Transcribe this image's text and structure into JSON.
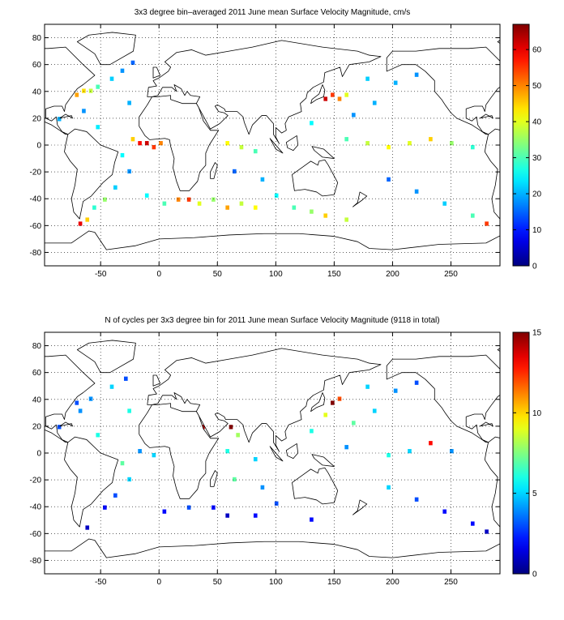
{
  "chart_data": [
    {
      "type": "heatmap",
      "title": "3x3 degree bin–averaged 2011 June mean Surface Velocity Magnitude, cm/s",
      "xlim": [
        -98,
        292
      ],
      "ylim": [
        -90,
        90
      ],
      "xticks": [
        -50,
        0,
        50,
        100,
        150,
        200,
        250
      ],
      "yticks": [
        -80,
        -60,
        -40,
        -20,
        0,
        20,
        40,
        60,
        80
      ],
      "grid": true,
      "colormap": "jet",
      "clim": [
        0,
        67
      ],
      "colorbar_ticks": [
        0,
        10,
        20,
        30,
        40,
        50,
        60
      ],
      "cells": [
        {
          "lon": -76.5,
          "lat": 37.5,
          "value": 52
        },
        {
          "lon": -70.5,
          "lat": 37.5,
          "value": 48
        },
        {
          "lon": -64.5,
          "lat": 40.5,
          "value": 44
        },
        {
          "lon": -58.5,
          "lat": 40.5,
          "value": 38
        },
        {
          "lon": -52.5,
          "lat": 43.5,
          "value": 30
        },
        {
          "lon": -40.5,
          "lat": 49.5,
          "value": 22
        },
        {
          "lon": -31.5,
          "lat": 55.5,
          "value": 18
        },
        {
          "lon": -22.5,
          "lat": 61.5,
          "value": 15
        },
        {
          "lon": -25.5,
          "lat": 31.5,
          "value": 20
        },
        {
          "lon": -16.5,
          "lat": 1.5,
          "value": 58
        },
        {
          "lon": -10.5,
          "lat": 1.5,
          "value": 62
        },
        {
          "lon": -4.5,
          "lat": -1.5,
          "value": 55
        },
        {
          "lon": 1.5,
          "lat": 1.5,
          "value": 50
        },
        {
          "lon": -22.5,
          "lat": 4.5,
          "value": 45
        },
        {
          "lon": -31.5,
          "lat": -7.5,
          "value": 25
        },
        {
          "lon": -25.5,
          "lat": -19.5,
          "value": 18
        },
        {
          "lon": -37.5,
          "lat": -31.5,
          "value": 22
        },
        {
          "lon": -46.5,
          "lat": -40.5,
          "value": 35
        },
        {
          "lon": -55.5,
          "lat": -46.5,
          "value": 28
        },
        {
          "lon": -61.5,
          "lat": -55.5,
          "value": 45
        },
        {
          "lon": -67.5,
          "lat": -58.5,
          "value": 60
        },
        {
          "lon": -10.5,
          "lat": -37.5,
          "value": 25
        },
        {
          "lon": 4.5,
          "lat": -43.5,
          "value": 30
        },
        {
          "lon": 16.5,
          "lat": -40.5,
          "value": 50
        },
        {
          "lon": 25.5,
          "lat": -40.5,
          "value": 55
        },
        {
          "lon": 34.5,
          "lat": -43.5,
          "value": 40
        },
        {
          "lon": 46.5,
          "lat": -40.5,
          "value": 35
        },
        {
          "lon": 58.5,
          "lat": -46.5,
          "value": 48
        },
        {
          "lon": 70.5,
          "lat": -43.5,
          "value": 38
        },
        {
          "lon": 82.5,
          "lat": -46.5,
          "value": 42
        },
        {
          "lon": 58.5,
          "lat": 1.5,
          "value": 42
        },
        {
          "lon": 70.5,
          "lat": -1.5,
          "value": 38
        },
        {
          "lon": 82.5,
          "lat": -4.5,
          "value": 30
        },
        {
          "lon": 64.5,
          "lat": -19.5,
          "value": 15
        },
        {
          "lon": 88.5,
          "lat": -25.5,
          "value": 20
        },
        {
          "lon": 100.5,
          "lat": -37.5,
          "value": 25
        },
        {
          "lon": 115.5,
          "lat": -46.5,
          "value": 30
        },
        {
          "lon": 130.5,
          "lat": -49.5,
          "value": 35
        },
        {
          "lon": 142.5,
          "lat": -52.5,
          "value": 45
        },
        {
          "lon": 160.5,
          "lat": -55.5,
          "value": 38
        },
        {
          "lon": 142.5,
          "lat": 34.5,
          "value": 62
        },
        {
          "lon": 148.5,
          "lat": 37.5,
          "value": 55
        },
        {
          "lon": 154.5,
          "lat": 34.5,
          "value": 50
        },
        {
          "lon": 160.5,
          "lat": 37.5,
          "value": 40
        },
        {
          "lon": 130.5,
          "lat": 16.5,
          "value": 25
        },
        {
          "lon": 166.5,
          "lat": 22.5,
          "value": 18
        },
        {
          "lon": 184.5,
          "lat": 31.5,
          "value": 20
        },
        {
          "lon": 160.5,
          "lat": 4.5,
          "value": 30
        },
        {
          "lon": 178.5,
          "lat": 1.5,
          "value": 38
        },
        {
          "lon": 196.5,
          "lat": -1.5,
          "value": 42
        },
        {
          "lon": 214.5,
          "lat": 1.5,
          "value": 40
        },
        {
          "lon": 232.5,
          "lat": 4.5,
          "value": 45
        },
        {
          "lon": 250.5,
          "lat": 1.5,
          "value": 35
        },
        {
          "lon": 268.5,
          "lat": -1.5,
          "value": 28
        },
        {
          "lon": 196.5,
          "lat": -25.5,
          "value": 15
        },
        {
          "lon": 220.5,
          "lat": -34.5,
          "value": 18
        },
        {
          "lon": 244.5,
          "lat": -43.5,
          "value": 22
        },
        {
          "lon": 268.5,
          "lat": -52.5,
          "value": 30
        },
        {
          "lon": 280.5,
          "lat": -58.5,
          "value": 55
        },
        {
          "lon": 202.5,
          "lat": 46.5,
          "value": 20
        },
        {
          "lon": 220.5,
          "lat": 52.5,
          "value": 18
        },
        {
          "lon": 178.5,
          "lat": 49.5,
          "value": 22
        },
        {
          "lon": -64.5,
          "lat": 25.5,
          "value": 18
        },
        {
          "lon": -52.5,
          "lat": 13.5,
          "value": 24
        },
        {
          "lon": -85.5,
          "lat": 19.5,
          "value": 20
        }
      ]
    },
    {
      "type": "heatmap",
      "title": "N of cycles per 3x3 degree bin for 2011 June mean Surface Velocity Magnitude (9118 in total)",
      "xlim": [
        -98,
        292
      ],
      "ylim": [
        -90,
        90
      ],
      "xticks": [
        -50,
        0,
        50,
        100,
        150,
        200,
        250
      ],
      "yticks": [
        -80,
        -60,
        -40,
        -20,
        0,
        20,
        40,
        60,
        80
      ],
      "grid": true,
      "colormap": "jet",
      "clim": [
        0,
        15
      ],
      "colorbar_ticks": [
        0,
        5,
        10,
        15
      ],
      "cells": [
        {
          "lon": -70.5,
          "lat": 37.5,
          "value": 3
        },
        {
          "lon": -58.5,
          "lat": 40.5,
          "value": 4
        },
        {
          "lon": -40.5,
          "lat": 49.5,
          "value": 5
        },
        {
          "lon": -28.5,
          "lat": 55.5,
          "value": 3
        },
        {
          "lon": -25.5,
          "lat": 31.5,
          "value": 6
        },
        {
          "lon": -16.5,
          "lat": 1.5,
          "value": 4
        },
        {
          "lon": -4.5,
          "lat": -1.5,
          "value": 5
        },
        {
          "lon": -31.5,
          "lat": -7.5,
          "value": 7
        },
        {
          "lon": -25.5,
          "lat": -19.5,
          "value": 5
        },
        {
          "lon": -37.5,
          "lat": -31.5,
          "value": 3
        },
        {
          "lon": -46.5,
          "lat": -40.5,
          "value": 2
        },
        {
          "lon": -61.5,
          "lat": -55.5,
          "value": 1
        },
        {
          "lon": 4.5,
          "lat": -43.5,
          "value": 2
        },
        {
          "lon": 25.5,
          "lat": -40.5,
          "value": 3
        },
        {
          "lon": 46.5,
          "lat": -40.5,
          "value": 2
        },
        {
          "lon": 58.5,
          "lat": -46.5,
          "value": 1
        },
        {
          "lon": 82.5,
          "lat": -46.5,
          "value": 2
        },
        {
          "lon": 61.5,
          "lat": 19.5,
          "value": 15
        },
        {
          "lon": 67.5,
          "lat": 13.5,
          "value": 8
        },
        {
          "lon": 58.5,
          "lat": 1.5,
          "value": 6
        },
        {
          "lon": 82.5,
          "lat": -4.5,
          "value": 5
        },
        {
          "lon": 64.5,
          "lat": -19.5,
          "value": 7
        },
        {
          "lon": 88.5,
          "lat": -25.5,
          "value": 4
        },
        {
          "lon": 100.5,
          "lat": -37.5,
          "value": 3
        },
        {
          "lon": 130.5,
          "lat": -49.5,
          "value": 2
        },
        {
          "lon": 148.5,
          "lat": 37.5,
          "value": 15
        },
        {
          "lon": 154.5,
          "lat": 40.5,
          "value": 12
        },
        {
          "lon": 142.5,
          "lat": 28.5,
          "value": 9
        },
        {
          "lon": 130.5,
          "lat": 16.5,
          "value": 6
        },
        {
          "lon": 166.5,
          "lat": 22.5,
          "value": 7
        },
        {
          "lon": 184.5,
          "lat": 31.5,
          "value": 5
        },
        {
          "lon": 160.5,
          "lat": 4.5,
          "value": 4
        },
        {
          "lon": 196.5,
          "lat": -1.5,
          "value": 6
        },
        {
          "lon": 214.5,
          "lat": 1.5,
          "value": 5
        },
        {
          "lon": 232.5,
          "lat": 7.5,
          "value": 13
        },
        {
          "lon": 250.5,
          "lat": 1.5,
          "value": 4
        },
        {
          "lon": 196.5,
          "lat": -25.5,
          "value": 5
        },
        {
          "lon": 220.5,
          "lat": -34.5,
          "value": 3
        },
        {
          "lon": 244.5,
          "lat": -43.5,
          "value": 2
        },
        {
          "lon": 268.5,
          "lat": -52.5,
          "value": 2
        },
        {
          "lon": 280.5,
          "lat": -58.5,
          "value": 1
        },
        {
          "lon": 202.5,
          "lat": 46.5,
          "value": 4
        },
        {
          "lon": 220.5,
          "lat": 52.5,
          "value": 3
        },
        {
          "lon": 178.5,
          "lat": 49.5,
          "value": 5
        },
        {
          "lon": -52.5,
          "lat": 13.5,
          "value": 6
        },
        {
          "lon": -85.5,
          "lat": 19.5,
          "value": 3
        },
        {
          "lon": 37.5,
          "lat": 19.5,
          "value": 14
        },
        {
          "lon": -67.5,
          "lat": 31.5,
          "value": 4
        }
      ]
    }
  ]
}
